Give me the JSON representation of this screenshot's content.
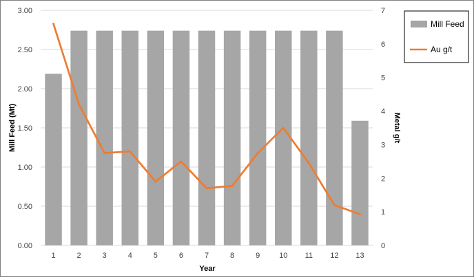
{
  "chart_data": {
    "type": "bar",
    "categories": [
      "1",
      "2",
      "3",
      "4",
      "5",
      "6",
      "7",
      "8",
      "9",
      "10",
      "11",
      "12",
      "13"
    ],
    "series": [
      {
        "name": "Mill Feed",
        "type": "bar",
        "axis": "left",
        "color": "#a6a6a6",
        "values": [
          2.19,
          2.74,
          2.74,
          2.74,
          2.74,
          2.74,
          2.74,
          2.74,
          2.74,
          2.74,
          2.74,
          2.74,
          1.59
        ]
      },
      {
        "name": "Au g/t",
        "type": "line",
        "axis": "right",
        "color": "#ed7d31",
        "values": [
          6.6,
          4.2,
          2.75,
          2.8,
          1.9,
          2.5,
          1.7,
          1.77,
          2.75,
          3.5,
          2.45,
          1.2,
          0.93
        ]
      }
    ],
    "title": "",
    "xlabel": "Year",
    "ylabel": "Mill Feed (Mt)",
    "y2label": "Metal g/t",
    "ylim": [
      0,
      3.0
    ],
    "y2lim": [
      0,
      7
    ],
    "yticks": [
      "0.00",
      "0.50",
      "1.00",
      "1.50",
      "2.00",
      "2.50",
      "3.00"
    ],
    "y2ticks": [
      "0",
      "1",
      "2",
      "3",
      "4",
      "5",
      "6",
      "7"
    ],
    "grid": true,
    "legend_position": "top-right"
  }
}
